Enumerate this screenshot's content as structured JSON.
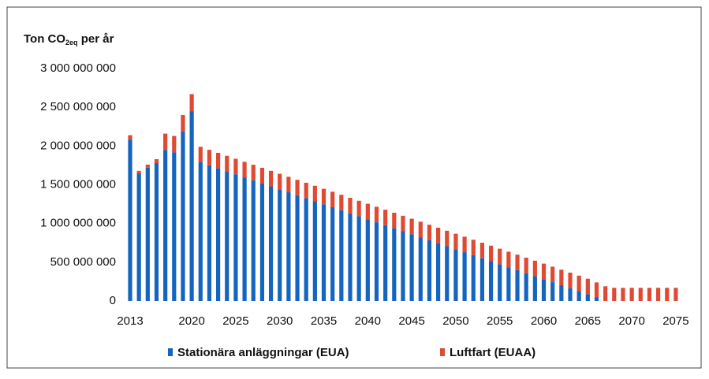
{
  "chart_data": {
    "type": "stacked_bar",
    "y_label": [
      "Ton CO",
      "2eq",
      " per år"
    ],
    "categories": [
      "2013",
      null,
      null,
      null,
      null,
      null,
      null,
      "2020",
      null,
      null,
      null,
      null,
      "2025",
      null,
      null,
      null,
      null,
      "2030",
      null,
      null,
      null,
      null,
      "2035",
      null,
      null,
      null,
      null,
      "2040",
      null,
      null,
      null,
      null,
      "2045",
      null,
      null,
      null,
      null,
      "2050",
      null,
      null,
      null,
      null,
      "2055",
      null,
      null,
      null,
      null,
      "2060",
      null,
      null,
      null,
      null,
      "2065",
      null,
      null,
      null,
      null,
      "2070",
      null,
      null,
      null,
      null,
      "2075"
    ],
    "series": [
      {
        "name": "Stationära anläggningar (EUA)",
        "color": "#1565c0",
        "values": [
          2080000000,
          1650000000,
          1720000000,
          1780000000,
          1950000000,
          1920000000,
          2190000000,
          2450000000,
          1790000000,
          1751000000,
          1712000000,
          1674000000,
          1635000000,
          1596000000,
          1558000000,
          1519000000,
          1480000000,
          1442000000,
          1403000000,
          1364000000,
          1326000000,
          1287000000,
          1248000000,
          1210000000,
          1171000000,
          1132000000,
          1094000000,
          1055000000,
          1016000000,
          978000000,
          939000000,
          900000000,
          862000000,
          823000000,
          784000000,
          746000000,
          707000000,
          668000000,
          630000000,
          591000000,
          552000000,
          514000000,
          475000000,
          436000000,
          398000000,
          359000000,
          320000000,
          282000000,
          243000000,
          204000000,
          166000000,
          127000000,
          88000000,
          50000000,
          0,
          0,
          0,
          0,
          0,
          0,
          0,
          0,
          0
        ]
      },
      {
        "name": "Luftfart (EUAA)",
        "color": "#e04a33",
        "values": [
          60000000,
          30000000,
          40000000,
          50000000,
          210000000,
          210000000,
          210000000,
          220000000,
          200000000,
          200000000,
          200000000,
          200000000,
          200000000,
          200000000,
          200000000,
          200000000,
          200000000,
          200000000,
          200000000,
          200000000,
          200000000,
          200000000,
          200000000,
          200000000,
          200000000,
          200000000,
          200000000,
          200000000,
          200000000,
          200000000,
          200000000,
          200000000,
          200000000,
          200000000,
          200000000,
          200000000,
          200000000,
          200000000,
          200000000,
          200000000,
          200000000,
          200000000,
          200000000,
          200000000,
          200000000,
          200000000,
          200000000,
          200000000,
          200000000,
          200000000,
          200000000,
          200000000,
          200000000,
          190000000,
          190000000,
          170000000,
          170000000,
          170000000,
          170000000,
          170000000,
          170000000,
          170000000,
          170000000
        ]
      }
    ],
    "ylim": [
      0,
      3000000000
    ],
    "yticks": [
      0,
      {
        "value": 500000000,
        "label": "500 000 000"
      },
      {
        "value": 1000000000,
        "label": "1 000 000 000"
      },
      {
        "value": 1500000000,
        "label": "1 500 000 000"
      },
      {
        "value": 2000000000,
        "label": "2 000 000 000"
      },
      {
        "value": 2500000000,
        "label": "2 500 000 000"
      },
      {
        "value": 3000000000,
        "label": "3 000 000 000"
      }
    ],
    "grid": false,
    "legend": "bottom"
  }
}
